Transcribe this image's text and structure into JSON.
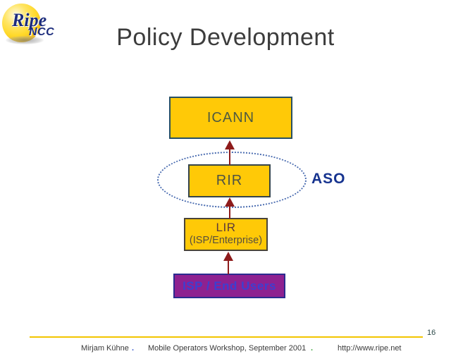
{
  "logo": {
    "brand": "Ripe",
    "sub": "NCC"
  },
  "title": "Policy Development",
  "diagram": {
    "icann": {
      "label": "ICANN"
    },
    "rir": {
      "label": "RIR"
    },
    "aso": {
      "label": "ASO"
    },
    "lir": {
      "label": "LIR",
      "sublabel": "(ISP/Enterprise)"
    },
    "isp": {
      "label": "ISP / End Users"
    }
  },
  "footer": {
    "page_number": "16",
    "author": "Mirjam Kühne",
    "separator1": ".",
    "event": "Mobile Operators Workshop, September 2001",
    "separator2": ".",
    "url": "http://www.ripe.net"
  },
  "colors": {
    "box_fill": "#ffc907",
    "icann_border": "#274f63",
    "rir_border": "#35444a",
    "lir_border": "#4a4438",
    "purple_fill": "#8e2190",
    "purple_border": "#2b2b8f",
    "purple_text": "#3d3fd0",
    "arrow": "#8e1b1b",
    "ellipse_dotted": "#4a6cb0",
    "aso_text": "#16338f",
    "footer_rule": "#f2c500",
    "logo_text": "#1d2d7d",
    "title_text": "#3c3c3c"
  }
}
